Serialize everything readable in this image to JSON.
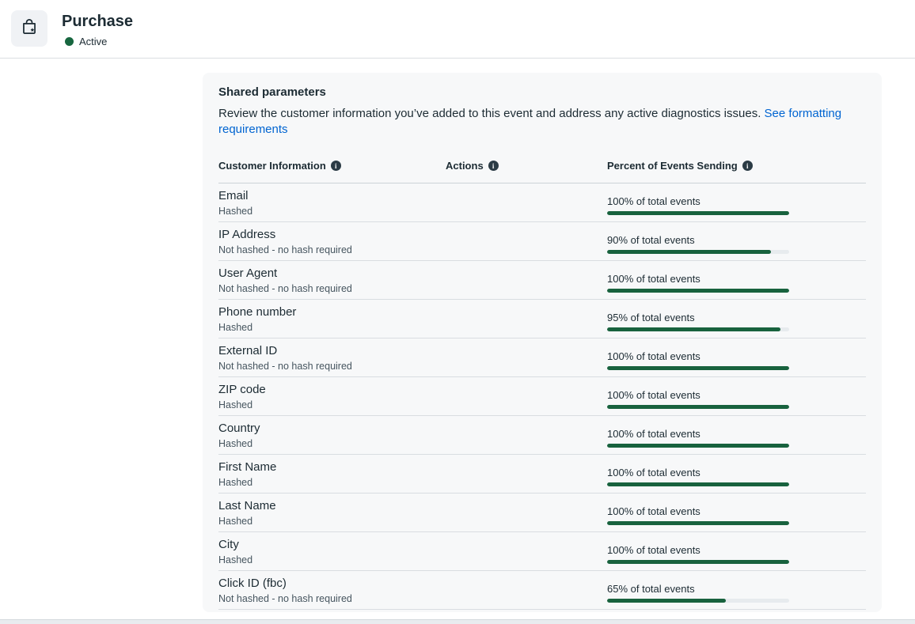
{
  "header": {
    "title": "Purchase",
    "status": "Active",
    "icon": "shopping-bag-icon"
  },
  "panel": {
    "title": "Shared parameters",
    "description": "Review the customer information you’ve added to this event and address any active diagnostics issues. ",
    "link_label": "See formatting requirements",
    "columns": [
      {
        "label": "Customer Information",
        "info_icon": "info-icon"
      },
      {
        "label": "Actions",
        "info_icon": "info-icon"
      },
      {
        "label": "Percent of Events Sending",
        "info_icon": "info-icon"
      }
    ],
    "rows": [
      {
        "name": "Email",
        "hash": "Hashed",
        "percent": 100,
        "percent_label": "100% of total events"
      },
      {
        "name": "IP Address",
        "hash": "Not hashed - no hash required",
        "percent": 90,
        "percent_label": "90% of total events"
      },
      {
        "name": "User Agent",
        "hash": "Not hashed - no hash required",
        "percent": 100,
        "percent_label": "100% of total events"
      },
      {
        "name": "Phone number",
        "hash": "Hashed",
        "percent": 95,
        "percent_label": "95% of total events"
      },
      {
        "name": "External ID",
        "hash": "Not hashed - no hash required",
        "percent": 100,
        "percent_label": "100% of total events"
      },
      {
        "name": "ZIP code",
        "hash": "Hashed",
        "percent": 100,
        "percent_label": "100% of total events"
      },
      {
        "name": "Country",
        "hash": "Hashed",
        "percent": 100,
        "percent_label": "100% of total events"
      },
      {
        "name": "First Name",
        "hash": "Hashed",
        "percent": 100,
        "percent_label": "100% of total events"
      },
      {
        "name": "Last Name",
        "hash": "Hashed",
        "percent": 100,
        "percent_label": "100% of total events"
      },
      {
        "name": "City",
        "hash": "Hashed",
        "percent": 100,
        "percent_label": "100% of total events"
      },
      {
        "name": "Click ID (fbc)",
        "hash": "Not hashed - no hash required",
        "percent": 65,
        "percent_label": "65% of total events"
      }
    ]
  },
  "colors": {
    "bar_green": "#18623e",
    "status_green": "#17663f",
    "link_blue": "#0064d1",
    "panel_bg": "#f7f8f9",
    "text_primary": "#1c2b33"
  }
}
